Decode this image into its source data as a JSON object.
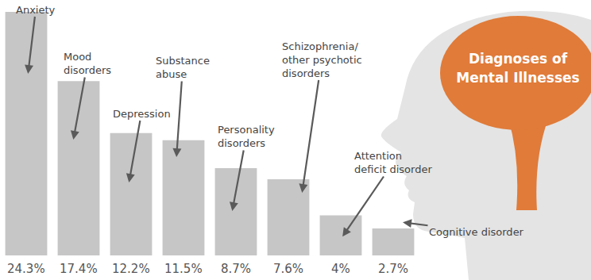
{
  "chart_data": {
    "type": "bar",
    "title": "Diagnoses of Mental Illnesses",
    "categories": [
      "Anxiety",
      "Mood disorders",
      "Depression",
      "Substance abuse",
      "Personality disorders",
      "Schizophrenia/ other psychotic disorders",
      "Attention deficit disorder",
      "Cognitive disorder"
    ],
    "values": [
      24.3,
      17.4,
      12.2,
      11.5,
      8.7,
      7.6,
      4,
      2.7
    ],
    "value_labels": [
      "24.3%",
      "17.4%",
      "12.2%",
      "11.5%",
      "8.7%",
      "7.6%",
      "4%",
      "2.7%"
    ],
    "color": "#c6c6c6",
    "ylim": [
      0,
      24.3
    ],
    "data_labels": true,
    "tick_labels": false,
    "grid": false
  }
}
